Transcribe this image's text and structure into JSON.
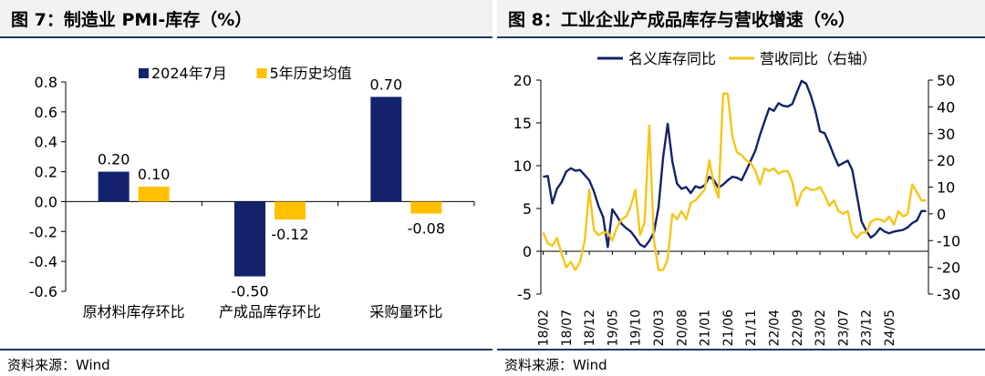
{
  "figures": [
    {
      "title": "图 7：制造业 PMI-库存（%）",
      "source": "资料来源：Wind",
      "chart_data": {
        "type": "bar",
        "categories": [
          "原材料库存环比",
          "产成品库存环比",
          "采购量环比"
        ],
        "series": [
          {
            "name": "2024年7月",
            "values": [
              0.2,
              -0.5,
              0.7
            ],
            "labels": [
              "0.20",
              "-0.50",
              "0.70"
            ],
            "color": "#13226b"
          },
          {
            "name": "5年历史均值",
            "values": [
              0.1,
              -0.12,
              -0.08
            ],
            "labels": [
              "0.10",
              "-0.12",
              "-0.08"
            ],
            "color": "#ffc000"
          }
        ],
        "ylim": [
          -0.6,
          0.8
        ],
        "yticks": [
          0.8,
          0.6,
          0.4,
          0.2,
          0.0,
          -0.2,
          -0.4,
          -0.6
        ],
        "ytick_labels": [
          "0.8",
          "0.6",
          "0.4",
          "0.2",
          "0.0",
          "-0.2",
          "-0.4",
          "-0.6"
        ],
        "legend": "top",
        "grid": false
      }
    },
    {
      "title": "图 8：工业企业产成品库存与营收增速（%）",
      "source": "资料来源：Wind",
      "chart_data": {
        "type": "line",
        "x_start": "2018-02",
        "x_end": "2024-06",
        "xtick_labels": [
          "18/02",
          "18/07",
          "18/12",
          "19/05",
          "19/10",
          "20/03",
          "20/08",
          "21/01",
          "21/06",
          "21/11",
          "22/04",
          "22/09",
          "23/02",
          "23/07",
          "23/12",
          "24/05"
        ],
        "ylim_left": [
          -5,
          20
        ],
        "ylim_right": [
          -30,
          50
        ],
        "yticks_left": [
          20,
          15,
          10,
          5,
          0,
          -5
        ],
        "ytick_labels_left": [
          "20",
          "15",
          "10",
          "5",
          "0",
          "-5"
        ],
        "yticks_right": [
          50,
          40,
          30,
          20,
          10,
          0,
          -10,
          -20,
          -30
        ],
        "ytick_labels_right": [
          "50",
          "40",
          "30",
          "20",
          "10",
          "0",
          "-10",
          "-20",
          "-30"
        ],
        "legend": "top",
        "grid": false,
        "series": [
          {
            "name": "名义库存同比",
            "axis": "left",
            "color": "#13226b",
            "values": [
              8.7,
              8.8,
              5.6,
              7.3,
              8.1,
              9.3,
              9.7,
              9.4,
              9.5,
              8.9,
              8.3,
              7.0,
              5.3,
              4.0,
              0.5,
              4.9,
              4.1,
              3.2,
              2.7,
              2.3,
              1.6,
              0.8,
              0.5,
              1.2,
              2.2,
              5.1,
              11.0,
              14.9,
              10.5,
              7.9,
              7.3,
              7.5,
              6.8,
              7.6,
              7.4,
              7.7,
              8.7,
              8.3,
              7.4,
              7.8,
              8.3,
              8.7,
              8.6,
              8.3,
              9.4,
              10.6,
              11.8,
              13.6,
              15.2,
              16.7,
              16.4,
              17.3,
              17.0,
              16.9,
              17.2,
              18.6,
              19.9,
              19.6,
              18.2,
              16.4,
              14.0,
              13.8,
              12.6,
              11.2,
              10.0,
              10.3,
              10.6,
              9.5,
              6.5,
              3.5,
              2.4,
              1.6,
              2.0,
              2.7,
              2.3,
              2.1,
              2.3,
              2.4,
              2.5,
              2.8,
              3.3,
              3.6,
              4.7,
              4.7
            ]
          },
          {
            "name": "营收同比（右轴）",
            "axis": "right",
            "color": "#f5c518",
            "values": [
              -7,
              -11,
              -12,
              -9,
              -15,
              -20,
              -18,
              -21,
              -18,
              -10,
              9,
              -6,
              -8,
              -7,
              -7,
              -10,
              -5,
              -2,
              -1,
              3,
              9,
              -8,
              -3,
              33,
              -10,
              -21,
              -21,
              -17,
              0,
              -2,
              1,
              -2,
              4,
              5,
              7,
              9,
              20,
              11,
              6,
              45,
              45,
              29,
              23,
              22,
              20,
              19,
              16,
              11,
              17,
              16,
              17,
              15,
              16,
              16,
              12,
              3,
              8,
              10,
              9,
              9,
              10,
              7,
              3,
              5,
              1,
              0,
              1,
              -7,
              -9,
              -7,
              -7,
              -3,
              -2,
              -2,
              -3,
              -1,
              -4,
              1,
              -1,
              0,
              11,
              8,
              5,
              5
            ]
          }
        ]
      }
    }
  ]
}
